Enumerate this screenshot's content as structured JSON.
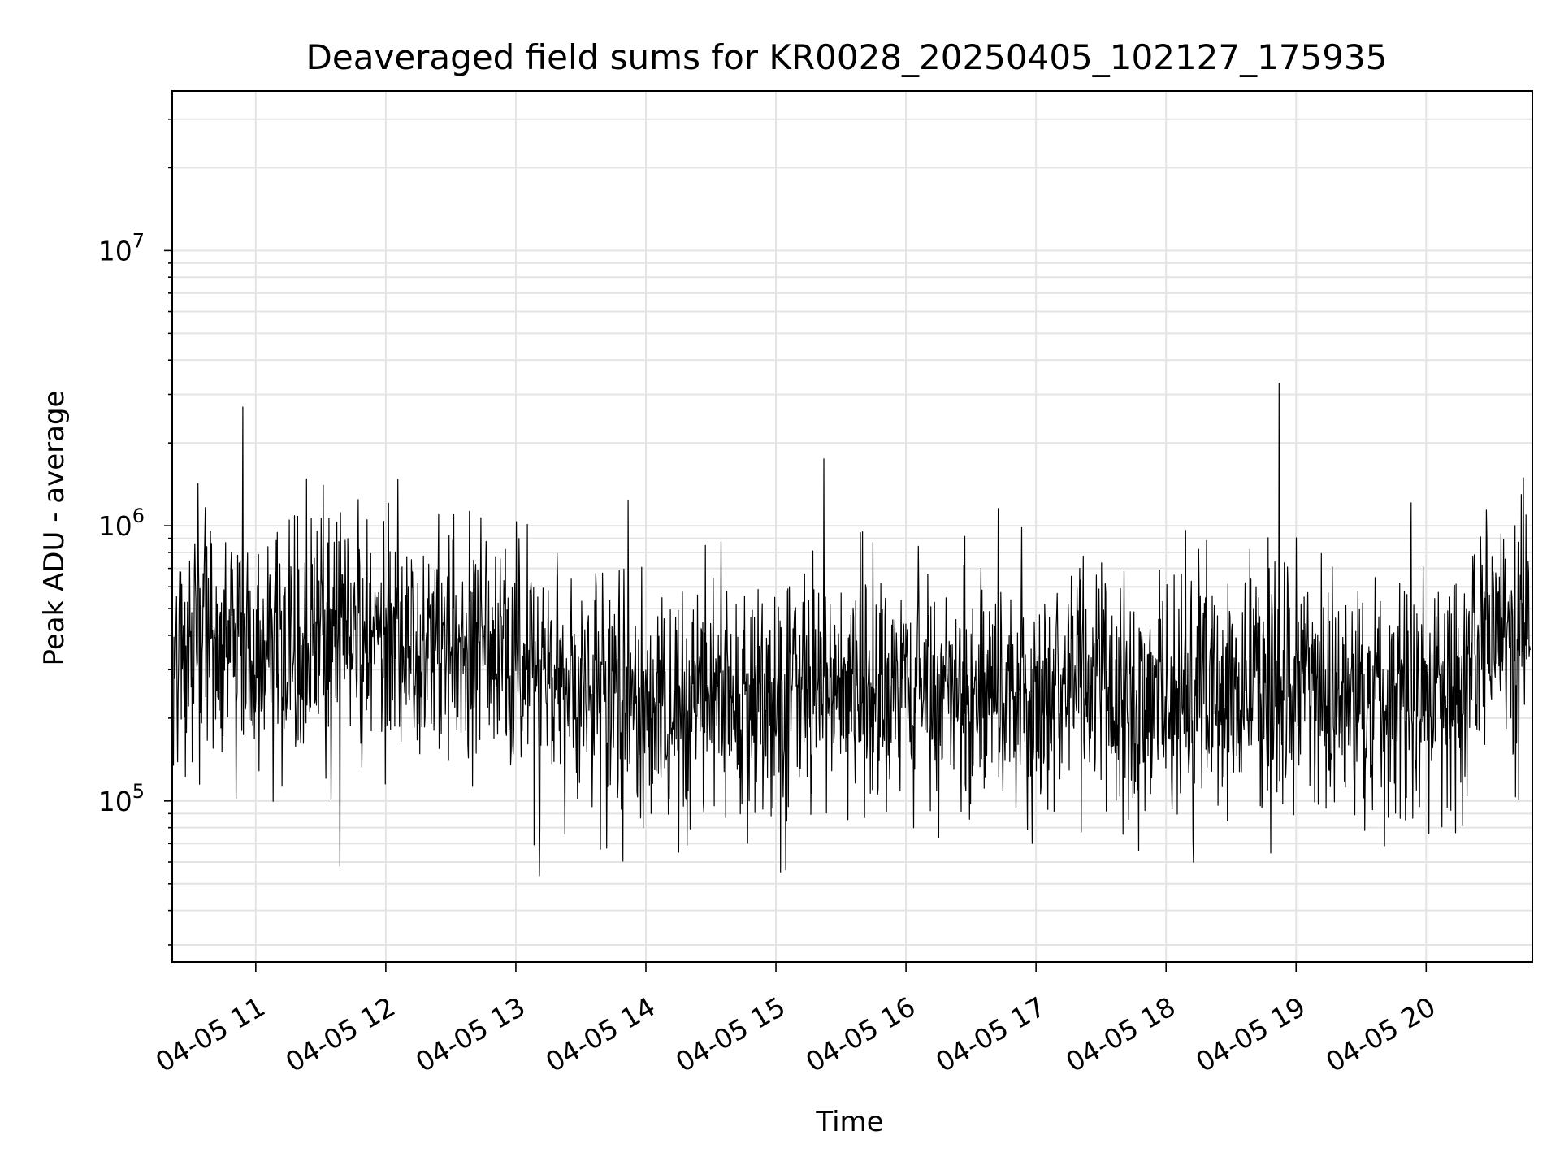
{
  "chart_data": {
    "type": "line",
    "title": "Deaveraged field sums for KR0028_20250405_102127_175935",
    "xlabel": "Time",
    "ylabel": "Peak ADU - average",
    "y_scale": "log",
    "xlim": [
      "2025-04-05T10:21:27",
      "2025-04-05T20:49:00"
    ],
    "ylim": [
      26000,
      38000000
    ],
    "x_ticks": [
      {
        "t": "2025-04-05T11:00",
        "label": "04-05 11"
      },
      {
        "t": "2025-04-05T12:00",
        "label": "04-05 12"
      },
      {
        "t": "2025-04-05T13:00",
        "label": "04-05 13"
      },
      {
        "t": "2025-04-05T14:00",
        "label": "04-05 14"
      },
      {
        "t": "2025-04-05T15:00",
        "label": "04-05 15"
      },
      {
        "t": "2025-04-05T16:00",
        "label": "04-05 16"
      },
      {
        "t": "2025-04-05T17:00",
        "label": "04-05 17"
      },
      {
        "t": "2025-04-05T18:00",
        "label": "04-05 18"
      },
      {
        "t": "2025-04-05T19:00",
        "label": "04-05 19"
      },
      {
        "t": "2025-04-05T20:00",
        "label": "04-05 20"
      }
    ],
    "y_ticks": [
      {
        "value": 100000,
        "base": "10",
        "exp": "5"
      },
      {
        "value": 1000000,
        "base": "10",
        "exp": "6"
      },
      {
        "value": 10000000,
        "base": "10",
        "exp": "7"
      }
    ],
    "grid": true,
    "line_color": "#000000",
    "series": [
      {
        "x": [
          "2025-04-05T10:22",
          "2025-04-05T10:30",
          "2025-04-05T10:40",
          "2025-04-05T10:50",
          "2025-04-05T10:54",
          "2025-04-05T11:00",
          "2025-04-05T11:10",
          "2025-04-05T11:20",
          "2025-04-05T11:30",
          "2025-04-05T11:40",
          "2025-04-05T11:50",
          "2025-04-05T12:00",
          "2025-04-05T12:10",
          "2025-04-05T12:20",
          "2025-04-05T12:30",
          "2025-04-05T12:40",
          "2025-04-05T12:50",
          "2025-04-05T13:00",
          "2025-04-05T13:10",
          "2025-04-05T13:20",
          "2025-04-05T13:30",
          "2025-04-05T13:40",
          "2025-04-05T13:50",
          "2025-04-05T14:00",
          "2025-04-05T14:10",
          "2025-04-05T14:20",
          "2025-04-05T14:30",
          "2025-04-05T14:40",
          "2025-04-05T14:50",
          "2025-04-05T15:00",
          "2025-04-05T15:10",
          "2025-04-05T15:20",
          "2025-04-05T15:22",
          "2025-04-05T15:30",
          "2025-04-05T15:40",
          "2025-04-05T15:50",
          "2025-04-05T16:00",
          "2025-04-05T16:10",
          "2025-04-05T16:20",
          "2025-04-05T16:30",
          "2025-04-05T16:40",
          "2025-04-05T16:50",
          "2025-04-05T17:00",
          "2025-04-05T17:10",
          "2025-04-05T17:20",
          "2025-04-05T17:30",
          "2025-04-05T17:40",
          "2025-04-05T17:50",
          "2025-04-05T18:00",
          "2025-04-05T18:10",
          "2025-04-05T18:20",
          "2025-04-05T18:30",
          "2025-04-05T18:40",
          "2025-04-05T18:50",
          "2025-04-05T18:52",
          "2025-04-05T19:00",
          "2025-04-05T19:10",
          "2025-04-05T19:20",
          "2025-04-05T19:30",
          "2025-04-05T19:40",
          "2025-04-05T19:50",
          "2025-04-05T20:00",
          "2025-04-05T20:10",
          "2025-04-05T20:20",
          "2025-04-05T20:30",
          "2025-04-05T20:36",
          "2025-04-05T20:40",
          "2025-04-05T20:48"
        ],
        "values": [
          350000,
          420000,
          380000,
          330000,
          2700000,
          350000,
          400000,
          340000,
          380000,
          420000,
          360000,
          390000,
          410000,
          370000,
          350000,
          380000,
          330000,
          340000,
          320000,
          300000,
          290000,
          270000,
          250000,
          230000,
          220000,
          230000,
          250000,
          240000,
          220000,
          230000,
          250000,
          240000,
          1750000,
          240000,
          230000,
          250000,
          230000,
          250000,
          240000,
          230000,
          260000,
          250000,
          240000,
          250000,
          270000,
          260000,
          240000,
          250000,
          240000,
          250000,
          230000,
          250000,
          240000,
          230000,
          3300000,
          250000,
          240000,
          230000,
          240000,
          230000,
          240000,
          220000,
          250000,
          330000,
          400000,
          430000,
          450000,
          500000
        ]
      }
    ]
  }
}
